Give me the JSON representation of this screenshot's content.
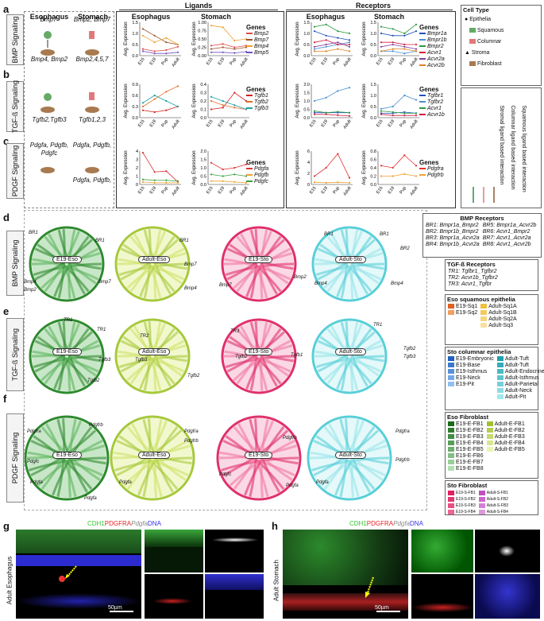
{
  "colors": {
    "accent_eso": "#4aa84a",
    "accent_sto": "#e23b7a",
    "accent_fib": "#f08a3c",
    "accent_cyan": "#5ad0d8",
    "accent_lime": "#b8d640"
  },
  "panels": {
    "a": "a",
    "b": "b",
    "c": "c",
    "d": "d",
    "e": "e",
    "f": "f",
    "g": "g",
    "h": "h"
  },
  "headers": {
    "ligands": "Ligands",
    "receptors": "Receptors",
    "esophagus": "Esophagus",
    "stomach": "Stomach"
  },
  "rows": {
    "bmp": "BMP Signaling",
    "tgf": "TGF-ß Signaling",
    "pdgf": "PDGF Signaling"
  },
  "schematic": {
    "bmp_eso_top": "Bmp7",
    "bmp_eso_bot": "Bmp4, Bmp2",
    "bmp_sto_top": "Bmp2, Bmp7",
    "bmp_sto_bot": "Bmp2,4,5,7",
    "tgf_eso": "Tgfb2,Tgfb3",
    "tgf_sto": "Tgfb1,2,3",
    "pdgf_eso_top": "Pdgfa, Pdgfb,",
    "pdgf_eso_top2": "Pdgfc",
    "pdgf_sto_top": "Pdgfa, Pdgfb,",
    "pdgf_sto_bot": "Pdgfa, Pdgfb,"
  },
  "axis": {
    "ylabel": "Avg. Expression",
    "x": [
      "E15",
      "E19",
      "Pup",
      "Adult"
    ],
    "genes": "Genes"
  },
  "legends": {
    "bmp_lig": [
      "Bmp2",
      "Bmp7",
      "Bmp4",
      "Bmp5"
    ],
    "bmp_rec": [
      "Bmpr1a",
      "Bmpr1b",
      "Bmpr2",
      "Acvr1",
      "Acvr2a",
      "Acvr2b"
    ],
    "tgf_lig": [
      "Tgfb1",
      "Tgfb2",
      "Tgfb3"
    ],
    "tgf_rec": [
      "Tgfbr1",
      "Tgfbr2",
      "Acvr1",
      "Acvr1b"
    ],
    "pdgf_lig": [
      "Pdgfa",
      "Pdgfb",
      "Pdgfc"
    ],
    "pdgf_rec": [
      "Pdgfra",
      "Pdgfrb"
    ]
  },
  "chart_data": [
    {
      "type": "line",
      "title": "Esophagus BMP ligands",
      "x": [
        "E15",
        "E19",
        "Pup",
        "Adult"
      ],
      "ylim": [
        0,
        1.5
      ],
      "yticks": [
        "0.0",
        "0.5",
        "1.0",
        "1.5"
      ],
      "series": [
        {
          "name": "Bmp2",
          "values": [
            0.3,
            0.2,
            0.25,
            0.4
          ]
        },
        {
          "name": "Bmp7",
          "values": [
            1.2,
            0.9,
            0.6,
            0.5
          ]
        },
        {
          "name": "Bmp4",
          "values": [
            0.9,
            0.6,
            0.8,
            0.5
          ]
        },
        {
          "name": "Bmp5",
          "values": [
            0.2,
            0.1,
            0.1,
            0.15
          ]
        }
      ]
    },
    {
      "type": "line",
      "title": "Stomach BMP ligands",
      "x": [
        "E15",
        "E19",
        "Pup",
        "Adult"
      ],
      "ylim": [
        0,
        1.0
      ],
      "yticks": [
        "0.00",
        "0.25",
        "0.50",
        "0.75",
        "1.00"
      ],
      "series": [
        {
          "name": "Bmp2",
          "values": [
            0.3,
            0.35,
            0.25,
            0.3
          ]
        },
        {
          "name": "Bmp7",
          "values": [
            0.2,
            0.25,
            0.2,
            0.25
          ]
        },
        {
          "name": "Bmp4",
          "values": [
            0.9,
            0.85,
            0.45,
            0.5
          ]
        },
        {
          "name": "Bmp5",
          "values": [
            0.1,
            0.1,
            0.08,
            0.12
          ]
        }
      ]
    },
    {
      "type": "line",
      "title": "Esophagus BMP receptors",
      "x": [
        "E15",
        "E19",
        "Pup",
        "Adult"
      ],
      "ylim": [
        0,
        1.5
      ],
      "yticks": [
        "0.0",
        "0.5",
        "1.0",
        "1.5"
      ],
      "series": [
        {
          "name": "Bmpr1a",
          "values": [
            1.1,
            0.9,
            0.8,
            0.7
          ]
        },
        {
          "name": "Bmpr1b",
          "values": [
            0.3,
            0.4,
            0.5,
            0.6
          ]
        },
        {
          "name": "Bmpr2",
          "values": [
            1.3,
            1.4,
            1.1,
            1.0
          ]
        },
        {
          "name": "Acvr1",
          "values": [
            0.6,
            0.7,
            0.5,
            0.5
          ]
        },
        {
          "name": "Acvr2a",
          "values": [
            0.4,
            0.5,
            0.6,
            0.4
          ]
        },
        {
          "name": "Acvr2b",
          "values": [
            0.2,
            0.2,
            0.3,
            0.2
          ]
        }
      ]
    },
    {
      "type": "line",
      "title": "Stomach BMP receptors",
      "x": [
        "E15",
        "E19",
        "Pup",
        "Adult"
      ],
      "ylim": [
        0,
        1.5
      ],
      "yticks": [
        "0.0",
        "0.5",
        "1.0",
        "1.5"
      ],
      "series": [
        {
          "name": "Bmpr1a",
          "values": [
            1.0,
            0.9,
            0.9,
            1.1
          ]
        },
        {
          "name": "Bmpr1b",
          "values": [
            0.2,
            0.2,
            0.1,
            0.2
          ]
        },
        {
          "name": "Bmpr2",
          "values": [
            1.3,
            1.2,
            1.0,
            1.4
          ]
        },
        {
          "name": "Acvr1",
          "values": [
            0.6,
            0.6,
            0.5,
            0.5
          ]
        },
        {
          "name": "Acvr2a",
          "values": [
            0.4,
            0.5,
            0.4,
            0.3
          ]
        },
        {
          "name": "Acvr2b",
          "values": [
            0.2,
            0.3,
            0.3,
            0.2
          ]
        }
      ]
    },
    {
      "type": "line",
      "title": "Esophagus TGF ligands",
      "x": [
        "E15",
        "E19",
        "Pup",
        "Adult"
      ],
      "ylim": [
        0,
        0.9
      ],
      "yticks": [
        "0.0",
        "0.3",
        "0.6",
        "0.9"
      ],
      "series": [
        {
          "name": "Tgfb1",
          "values": [
            0.2,
            0.15,
            0.2,
            0.3
          ]
        },
        {
          "name": "Tgfb2",
          "values": [
            0.3,
            0.5,
            0.7,
            0.85
          ]
        },
        {
          "name": "Tgfb3",
          "values": [
            0.4,
            0.6,
            0.45,
            0.3
          ]
        }
      ]
    },
    {
      "type": "line",
      "title": "Stomach TGF ligands",
      "x": [
        "E15",
        "E19",
        "Pup",
        "Adult"
      ],
      "ylim": [
        0,
        0.4
      ],
      "yticks": [
        "0.0",
        "0.1",
        "0.2",
        "0.3",
        "0.4"
      ],
      "series": [
        {
          "name": "Tgfb1",
          "values": [
            0.1,
            0.12,
            0.3,
            0.2
          ]
        },
        {
          "name": "Tgfb2",
          "values": [
            0.2,
            0.15,
            0.12,
            0.1
          ]
        },
        {
          "name": "Tgfb3",
          "values": [
            0.25,
            0.2,
            0.15,
            0.1
          ]
        }
      ]
    },
    {
      "type": "line",
      "title": "Esophagus TGF receptors",
      "x": [
        "E15",
        "E19",
        "Pup",
        "Adult"
      ],
      "ylim": [
        0,
        2.0
      ],
      "yticks": [
        "0.0",
        "0.5",
        "1.0",
        "1.5",
        "2.0"
      ],
      "series": [
        {
          "name": "Tgfbr1",
          "values": [
            0.3,
            0.3,
            0.3,
            0.3
          ]
        },
        {
          "name": "Tgfbr2",
          "values": [
            1.0,
            1.2,
            1.6,
            1.8
          ]
        },
        {
          "name": "Acvr1",
          "values": [
            0.4,
            0.3,
            0.35,
            0.3
          ]
        },
        {
          "name": "Acvr1b",
          "values": [
            0.2,
            0.2,
            0.15,
            0.1
          ]
        }
      ]
    },
    {
      "type": "line",
      "title": "Stomach TGF receptors",
      "x": [
        "E15",
        "E19",
        "Pup",
        "Adult"
      ],
      "ylim": [
        0,
        1.5
      ],
      "yticks": [
        "0.0",
        "0.5",
        "1.0",
        "1.5"
      ],
      "series": [
        {
          "name": "Tgfbr1",
          "values": [
            0.2,
            0.2,
            0.25,
            0.2
          ]
        },
        {
          "name": "Tgfbr2",
          "values": [
            0.4,
            0.5,
            1.0,
            0.8
          ]
        },
        {
          "name": "Acvr1",
          "values": [
            0.3,
            0.25,
            0.2,
            0.2
          ]
        },
        {
          "name": "Acvr1b",
          "values": [
            0.15,
            0.1,
            0.1,
            0.1
          ]
        }
      ]
    },
    {
      "type": "line",
      "title": "Esophagus PDGF ligands",
      "x": [
        "E15",
        "E19",
        "Pup",
        "Adult"
      ],
      "ylim": [
        0,
        4
      ],
      "yticks": [
        "0",
        "1",
        "2",
        "3",
        "4"
      ],
      "series": [
        {
          "name": "Pdgfa",
          "values": [
            3.8,
            1.5,
            1.6,
            0.3
          ]
        },
        {
          "name": "Pdgfb",
          "values": [
            0.3,
            0.2,
            0.2,
            0.2
          ]
        },
        {
          "name": "Pdgfc",
          "values": [
            0.6,
            0.5,
            0.5,
            0.4
          ]
        }
      ]
    },
    {
      "type": "line",
      "title": "Stomach PDGF ligands",
      "x": [
        "E15",
        "E19",
        "Pup",
        "Adult"
      ],
      "ylim": [
        0,
        2.0
      ],
      "yticks": [
        "0.0",
        "0.5",
        "1.0",
        "1.5",
        "2.0"
      ],
      "series": [
        {
          "name": "Pdgfa",
          "values": [
            1.3,
            0.9,
            1.0,
            1.2
          ]
        },
        {
          "name": "Pdgfb",
          "values": [
            0.2,
            0.2,
            0.15,
            0.1
          ]
        },
        {
          "name": "Pdgfc",
          "values": [
            0.6,
            0.5,
            0.6,
            0.5
          ]
        }
      ]
    },
    {
      "type": "line",
      "title": "Esophagus PDGF receptors",
      "x": [
        "E15",
        "E19",
        "Pup",
        "Adult"
      ],
      "ylim": [
        0,
        6
      ],
      "yticks": [
        "0",
        "2",
        "4",
        "6"
      ],
      "series": [
        {
          "name": "Pdgfra",
          "values": [
            1.5,
            3.0,
            5.5,
            1.2
          ]
        },
        {
          "name": "Pdgfrb",
          "values": [
            0.4,
            0.3,
            0.4,
            0.3
          ]
        }
      ]
    },
    {
      "type": "line",
      "title": "Stomach PDGF receptors",
      "x": [
        "E15",
        "E19",
        "Pup",
        "Adult"
      ],
      "ylim": [
        0,
        0.8
      ],
      "yticks": [
        "0.0",
        "0.2",
        "0.4",
        "0.6",
        "0.8"
      ],
      "series": [
        {
          "name": "Pdgfra",
          "values": [
            0.45,
            0.4,
            0.7,
            0.45
          ]
        },
        {
          "name": "Pdgfrb",
          "values": [
            0.2,
            0.2,
            0.25,
            0.2
          ]
        }
      ]
    }
  ],
  "celltype": {
    "title": "Cell Type",
    "items": [
      "Epithelia",
      "Squamous",
      "Columnar",
      "Stroma",
      "Fibroblast"
    ]
  },
  "interaction": {
    "items": [
      "Squamous ligand based interaction",
      "Columnar ligand based interaction",
      "Stromal ligand based interaction"
    ]
  },
  "bmp_receptors": {
    "title": "BMP Receptors",
    "left": [
      "BR1: Bmpr1a_Bmpr2",
      "BR2: Bmpr1b_Bmpr2",
      "BR3: Bmpr1a_Acvr2a",
      "BR4: Bmpr1b_Acvr2a"
    ],
    "right": [
      "BR5: Bmpr1a_Acvr2b",
      "BR6: Acvr1_Bmpr2",
      "BR7: Acvr1_Acvr2a",
      "BR8: Acvr1_Acvr2b"
    ]
  },
  "tgf_receptors": {
    "title": "TGF-ß Receptors",
    "items": [
      "TR1: Tgfbr1_Tgfbr2",
      "TR2: Acvr1b_Tgfbr2",
      "TR3: Acvr1_Tgfbr"
    ]
  },
  "eso_squamous": {
    "title": "Eso squamous epithelia",
    "left": [
      "E19-Sq1",
      "E19-Sq2"
    ],
    "right": [
      "Adult-Sq1A",
      "Adult-Sq1B",
      "Adult-Sq2A",
      "Adult-Sq3"
    ]
  },
  "sto_columnar": {
    "title": "Sto columnar epithelia",
    "left": [
      "E19-Embryonic",
      "E19-Base",
      "E19-Isthmus",
      "E19-Neck",
      "E19-Pit"
    ],
    "right": [
      "Adult-Tuft",
      "Adult-Tuft",
      "Adult-Endocrine",
      "Adult-Isthmus",
      "Adult-Parietal",
      "Adult-Neck",
      "Adult-Pit"
    ]
  },
  "eso_fib": {
    "title": "Eso Fibroblast",
    "left": [
      "E19-E-FB1",
      "E19-E-FB2",
      "E19-E-FB3",
      "E19-E-FB4",
      "E19-E-FB5",
      "E19-E-FB6",
      "E19-E-FB7",
      "E19-E-FB8"
    ],
    "right": [
      "Adult-E-FB1",
      "Adult-E-FB2",
      "Adult-E-FB3",
      "Adult-E-FB4",
      "Adult-E-FB5"
    ]
  },
  "sto_fib": {
    "title": "Sto Fibroblast",
    "left": [
      "E19-S-FB1",
      "E19-S-FB2",
      "E19-S-FB3",
      "E19-S-FB4",
      "E19-S-FB5",
      "E19-S-FB6",
      "E19-S-FB7",
      "E19-S-FB8"
    ],
    "right": [
      "Adult-S-FB1",
      "Adult-S-FB2",
      "Adult-S-FB3",
      "Adult-S-FB4",
      "Adult-S-FB5",
      "Adult-S-FB6"
    ]
  },
  "chords": {
    "e19eso": "E19-Eso",
    "adulteso": "Adult-Eso",
    "e19sto": "E19-Sto",
    "adultsto": "Adult-Sto"
  },
  "chord_labels": {
    "br": [
      "BR1",
      "BR2",
      "BR3",
      "BR4",
      "BR5",
      "BR6",
      "BR7",
      "BR8"
    ],
    "tr": [
      "TR1",
      "TR2",
      "TR3"
    ],
    "bmp": [
      "Bmp2",
      "Bmp4",
      "Bmp7"
    ],
    "tgfb": [
      "Tgfb1",
      "Tgfb2",
      "Tgfb3"
    ],
    "pdgf": [
      "Pdgfa",
      "Pdgfb",
      "Pdgfc",
      "Pdgfra",
      "Pdgfrb"
    ]
  },
  "micro": {
    "stain_g": [
      "CDH1",
      "PDGFRA",
      "Pdgfa",
      "DNA"
    ],
    "g_side": "Adult Esophagus",
    "h_side": "Adult Stomach",
    "scale": "50µm"
  }
}
